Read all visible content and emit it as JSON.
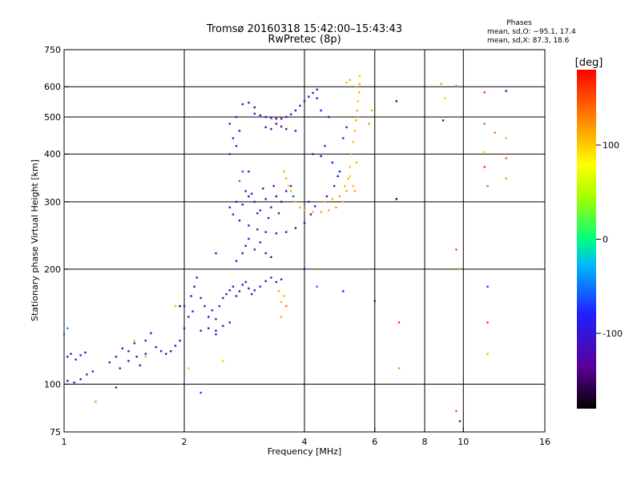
{
  "chart_data": {
    "type": "scatter",
    "title": "Tromsø 20160318 15:42:00–15:43:43",
    "subtitle": "RwPretec (8p)",
    "xlabel": "Frequency [MHz]",
    "ylabel": "Stationary phase Virtual Height [km]",
    "x_scale": "log",
    "y_scale": "log",
    "xlim": [
      1,
      16
    ],
    "ylim": [
      75,
      750
    ],
    "x_ticks": [
      1,
      2,
      4,
      6,
      8,
      10,
      16
    ],
    "y_ticks": [
      75,
      100,
      200,
      300,
      400,
      500,
      600,
      750
    ],
    "grid_x": [
      2,
      4,
      6,
      8,
      10
    ],
    "grid_y": [
      100,
      200,
      300,
      400,
      500,
      600
    ],
    "stats": {
      "header": "Phases",
      "line1": "mean, sd,O: −95.1, 17.4",
      "line2": "mean, sd,X:  87.3, 18.6"
    },
    "colorbar": {
      "label": "[deg]",
      "range": [
        -180,
        180
      ],
      "ticks": [
        100,
        0,
        -100
      ]
    },
    "color_value": "phase [deg]",
    "series": [
      {
        "points": [
          [
            1.02,
            118,
            -110
          ],
          [
            1.04,
            120,
            -115
          ],
          [
            1.07,
            116,
            -105
          ],
          [
            1.1,
            119,
            -112
          ],
          [
            1.13,
            121,
            -100
          ],
          [
            1.02,
            102,
            -108
          ],
          [
            1.06,
            101,
            -102
          ],
          [
            1.1,
            103,
            -112
          ],
          [
            1.14,
            106,
            -98
          ],
          [
            1.18,
            108,
            -105
          ],
          [
            1.02,
            140,
            -40
          ],
          [
            1.0,
            135,
            -20
          ],
          [
            1.3,
            114,
            -110
          ],
          [
            1.35,
            118,
            -105
          ],
          [
            1.4,
            124,
            -108
          ],
          [
            1.45,
            122,
            -100
          ],
          [
            1.5,
            128,
            -112
          ],
          [
            1.38,
            110,
            -104
          ],
          [
            1.45,
            115,
            -108
          ],
          [
            1.52,
            118,
            -102
          ],
          [
            1.55,
            112,
            -115
          ],
          [
            1.6,
            120,
            -110
          ],
          [
            1.6,
            130,
            -105
          ],
          [
            1.65,
            136,
            -108
          ],
          [
            1.7,
            125,
            -100
          ],
          [
            1.75,
            122,
            -112
          ],
          [
            1.8,
            120,
            -108
          ],
          [
            1.85,
            122,
            -115
          ],
          [
            1.9,
            126,
            -110
          ],
          [
            1.95,
            130,
            -105
          ],
          [
            2.0,
            140,
            -108
          ],
          [
            2.05,
            150,
            -112
          ],
          [
            2.1,
            155,
            -104
          ],
          [
            2.0,
            160,
            -110
          ],
          [
            2.08,
            170,
            -115
          ],
          [
            2.12,
            180,
            -120
          ],
          [
            2.15,
            190,
            -108
          ],
          [
            2.2,
            168,
            -102
          ],
          [
            2.25,
            160,
            -110
          ],
          [
            2.3,
            150,
            -105
          ],
          [
            2.35,
            156,
            -112
          ],
          [
            2.4,
            148,
            -100
          ],
          [
            2.45,
            160,
            -108
          ],
          [
            2.5,
            168,
            -115
          ],
          [
            2.55,
            172,
            -110
          ],
          [
            2.6,
            176,
            -104
          ],
          [
            2.65,
            180,
            -108
          ],
          [
            2.7,
            170,
            -112
          ],
          [
            2.75,
            175,
            -105
          ],
          [
            2.8,
            182,
            -110
          ],
          [
            2.85,
            185,
            -115
          ],
          [
            2.9,
            178,
            -100
          ],
          [
            2.95,
            172,
            -108
          ],
          [
            3.0,
            176,
            -112
          ],
          [
            3.1,
            180,
            -110
          ],
          [
            3.2,
            186,
            -104
          ],
          [
            3.3,
            190,
            -108
          ],
          [
            3.4,
            185,
            -115
          ],
          [
            3.5,
            188,
            -110
          ],
          [
            2.3,
            140,
            -112
          ],
          [
            2.4,
            138,
            -108
          ],
          [
            2.5,
            142,
            -105
          ],
          [
            2.6,
            145,
            -110
          ],
          [
            2.4,
            135,
            -115
          ],
          [
            2.2,
            138,
            -100
          ],
          [
            2.7,
            210,
            -110
          ],
          [
            2.8,
            220,
            -115
          ],
          [
            2.85,
            230,
            -108
          ],
          [
            2.9,
            240,
            -120
          ],
          [
            3.0,
            225,
            -125
          ],
          [
            3.2,
            220,
            -130
          ],
          [
            3.3,
            215,
            -128
          ],
          [
            3.1,
            235,
            -118
          ],
          [
            2.6,
            290,
            -110
          ],
          [
            2.65,
            278,
            -112
          ],
          [
            2.75,
            268,
            -115
          ],
          [
            2.9,
            260,
            -118
          ],
          [
            3.05,
            254,
            -122
          ],
          [
            3.2,
            250,
            -125
          ],
          [
            3.4,
            248,
            -128
          ],
          [
            3.6,
            250,
            -130
          ],
          [
            3.8,
            256,
            -128
          ],
          [
            4.0,
            264,
            -125
          ],
          [
            4.15,
            278,
            -120
          ],
          [
            4.25,
            292,
            -118
          ],
          [
            2.7,
            300,
            -110
          ],
          [
            2.8,
            295,
            -105
          ],
          [
            2.9,
            310,
            -112
          ],
          [
            3.0,
            300,
            -95
          ],
          [
            3.1,
            285,
            -100
          ],
          [
            3.2,
            305,
            -120
          ],
          [
            3.3,
            290,
            -115
          ],
          [
            3.4,
            310,
            -125
          ],
          [
            3.5,
            300,
            -128
          ],
          [
            3.6,
            320,
            -118
          ],
          [
            3.7,
            330,
            -80
          ],
          [
            3.75,
            310,
            -60
          ],
          [
            2.95,
            315,
            -105
          ],
          [
            3.15,
            325,
            -110
          ],
          [
            3.35,
            330,
            -112
          ],
          [
            3.05,
            280,
            -108
          ],
          [
            3.25,
            272,
            -115
          ],
          [
            3.45,
            280,
            -120
          ],
          [
            2.85,
            320,
            -98
          ],
          [
            2.6,
            400,
            -105
          ],
          [
            2.7,
            420,
            -110
          ],
          [
            2.65,
            440,
            -108
          ],
          [
            2.75,
            460,
            -112
          ],
          [
            2.6,
            480,
            -115
          ],
          [
            2.7,
            500,
            -110
          ],
          [
            2.8,
            360,
            -60
          ],
          [
            2.75,
            340,
            -40
          ],
          [
            2.9,
            360,
            -100
          ],
          [
            3.0,
            510,
            -112
          ],
          [
            3.1,
            505,
            -118
          ],
          [
            3.2,
            500,
            -122
          ],
          [
            3.3,
            497,
            -125
          ],
          [
            3.4,
            495,
            -128
          ],
          [
            3.5,
            495,
            -125
          ],
          [
            3.6,
            500,
            -122
          ],
          [
            3.7,
            508,
            -118
          ],
          [
            3.8,
            520,
            -114
          ],
          [
            3.9,
            535,
            -110
          ],
          [
            4.0,
            550,
            -108
          ],
          [
            4.1,
            565,
            -106
          ],
          [
            4.2,
            578,
            -104
          ],
          [
            4.3,
            590,
            -102
          ],
          [
            3.2,
            470,
            -125
          ],
          [
            3.3,
            465,
            -128
          ],
          [
            3.4,
            480,
            -126
          ],
          [
            3.5,
            472,
            -124
          ],
          [
            3.6,
            465,
            -120
          ],
          [
            3.8,
            460,
            -110
          ],
          [
            2.8,
            540,
            -130
          ],
          [
            2.9,
            545,
            -128
          ],
          [
            3.0,
            530,
            -125
          ],
          [
            4.2,
            400,
            -110
          ],
          [
            4.4,
            395,
            -105
          ],
          [
            4.5,
            420,
            -108
          ],
          [
            4.7,
            380,
            -100
          ],
          [
            4.9,
            360,
            -95
          ],
          [
            5.0,
            440,
            -102
          ],
          [
            5.1,
            470,
            -100
          ],
          [
            4.6,
            500,
            -100
          ],
          [
            4.3,
            560,
            -90
          ],
          [
            4.4,
            520,
            -95
          ],
          [
            4.75,
            330,
            -108
          ],
          [
            4.55,
            310,
            -112
          ],
          [
            4.85,
            350,
            -100
          ],
          [
            4.1,
            300,
            -100
          ],
          [
            3.55,
            360,
            110
          ],
          [
            3.6,
            345,
            112
          ],
          [
            3.65,
            330,
            108
          ],
          [
            3.7,
            320,
            115
          ],
          [
            3.8,
            300,
            110
          ],
          [
            3.9,
            290,
            105
          ],
          [
            4.0,
            285,
            112
          ],
          [
            4.2,
            282,
            108
          ],
          [
            4.4,
            282,
            112
          ],
          [
            4.6,
            285,
            110
          ],
          [
            4.8,
            290,
            115
          ],
          [
            5.0,
            300,
            108
          ],
          [
            5.1,
            320,
            112
          ],
          [
            5.15,
            345,
            110
          ],
          [
            5.2,
            370,
            108
          ],
          [
            5.25,
            400,
            112
          ],
          [
            5.3,
            430,
            110
          ],
          [
            5.35,
            460,
            108
          ],
          [
            5.38,
            490,
            112
          ],
          [
            5.42,
            520,
            110
          ],
          [
            5.45,
            550,
            108
          ],
          [
            5.48,
            580,
            112
          ],
          [
            5.5,
            610,
            110
          ],
          [
            5.5,
            640,
            108
          ],
          [
            5.1,
            615,
            110
          ],
          [
            5.2,
            625,
            112
          ],
          [
            5.4,
            600,
            110
          ],
          [
            5.45,
            500,
            115
          ],
          [
            5.4,
            380,
            112
          ],
          [
            4.5,
            300,
            110
          ],
          [
            4.7,
            305,
            108
          ],
          [
            4.9,
            310,
            112
          ],
          [
            5.05,
            330,
            110
          ],
          [
            3.5,
            164,
            112
          ],
          [
            3.55,
            170,
            110
          ],
          [
            3.45,
            175,
            115
          ],
          [
            5.5,
            640,
            100
          ],
          [
            5.2,
            350,
            100
          ],
          [
            5.3,
            330,
            108
          ],
          [
            5.35,
            320,
            112
          ],
          [
            5.9,
            520,
            115
          ],
          [
            5.8,
            480,
            118
          ],
          [
            6.8,
            550,
            -150
          ],
          [
            6.8,
            305,
            -160
          ],
          [
            6.0,
            165,
            -120
          ],
          [
            6.9,
            145,
            160
          ],
          [
            6.9,
            110,
            120
          ],
          [
            5.0,
            175,
            -80
          ],
          [
            8.8,
            610,
            115
          ],
          [
            9.6,
            602,
            -40
          ],
          [
            9.0,
            560,
            100
          ],
          [
            8.9,
            490,
            -120
          ],
          [
            11.3,
            580,
            160
          ],
          [
            12.8,
            585,
            -90
          ],
          [
            11.3,
            480,
            140
          ],
          [
            12.0,
            455,
            130
          ],
          [
            12.8,
            440,
            110
          ],
          [
            11.3,
            405,
            100
          ],
          [
            12.8,
            390,
            150
          ],
          [
            11.3,
            370,
            160
          ],
          [
            12.8,
            345,
            120
          ],
          [
            11.5,
            330,
            140
          ],
          [
            9.6,
            225,
            150
          ],
          [
            9.8,
            200,
            120
          ],
          [
            11.5,
            180,
            -70
          ],
          [
            11.5,
            145,
            160
          ],
          [
            11.5,
            120,
            110
          ],
          [
            9.8,
            80,
            -120
          ],
          [
            9.6,
            85,
            150
          ],
          [
            1.2,
            90,
            120
          ],
          [
            1.35,
            98,
            -110
          ],
          [
            1.6,
            118,
            110
          ],
          [
            1.5,
            130,
            105
          ],
          [
            1.9,
            160,
            110
          ],
          [
            1.95,
            160,
            -160
          ],
          [
            2.2,
            95,
            -70
          ],
          [
            2.05,
            110,
            100
          ],
          [
            2.5,
            115,
            100
          ],
          [
            3.5,
            150,
            110
          ],
          [
            3.6,
            160,
            140
          ],
          [
            2.4,
            220,
            -120
          ],
          [
            4.0,
            200,
            -100
          ],
          [
            4.3,
            180,
            -50
          ]
        ]
      }
    ]
  }
}
